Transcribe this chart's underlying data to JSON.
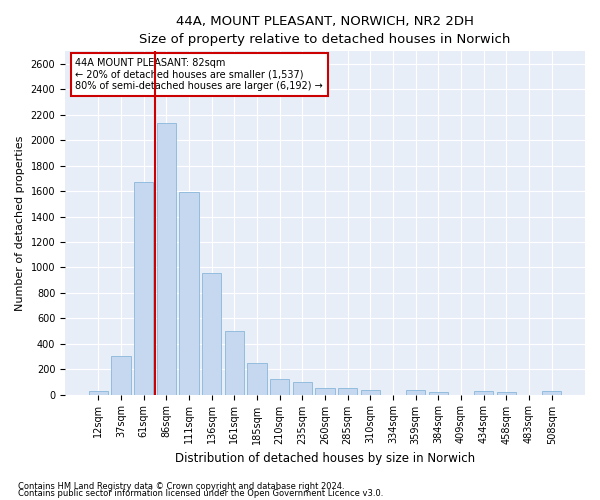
{
  "title": "44A, MOUNT PLEASANT, NORWICH, NR2 2DH",
  "subtitle": "Size of property relative to detached houses in Norwich",
  "xlabel": "Distribution of detached houses by size in Norwich",
  "ylabel": "Number of detached properties",
  "categories": [
    "12sqm",
    "37sqm",
    "61sqm",
    "86sqm",
    "111sqm",
    "136sqm",
    "161sqm",
    "185sqm",
    "210sqm",
    "235sqm",
    "260sqm",
    "285sqm",
    "310sqm",
    "334sqm",
    "359sqm",
    "384sqm",
    "409sqm",
    "434sqm",
    "458sqm",
    "483sqm",
    "508sqm"
  ],
  "values": [
    25,
    300,
    1670,
    2140,
    1590,
    960,
    500,
    250,
    120,
    100,
    50,
    50,
    35,
    0,
    35,
    20,
    0,
    30,
    20,
    0,
    25
  ],
  "bar_color": "#c5d8f0",
  "bar_edge_color": "#7aadd4",
  "vline_color": "#cc0000",
  "vline_x": 2.5,
  "annotation_text": "44A MOUNT PLEASANT: 82sqm\n← 20% of detached houses are smaller (1,537)\n80% of semi-detached houses are larger (6,192) →",
  "annotation_box_color": "white",
  "annotation_box_edge_color": "#cc0000",
  "ylim": [
    0,
    2700
  ],
  "yticks": [
    0,
    200,
    400,
    600,
    800,
    1000,
    1200,
    1400,
    1600,
    1800,
    2000,
    2200,
    2400,
    2600
  ],
  "footnote1": "Contains HM Land Registry data © Crown copyright and database right 2024.",
  "footnote2": "Contains public sector information licensed under the Open Government Licence v3.0.",
  "bg_color": "#ffffff",
  "plot_bg_color": "#e8eef8",
  "grid_color": "#ffffff",
  "title_fontsize": 9.5,
  "subtitle_fontsize": 8.5,
  "tick_fontsize": 7,
  "ylabel_fontsize": 8,
  "xlabel_fontsize": 8.5,
  "footnote_fontsize": 6
}
